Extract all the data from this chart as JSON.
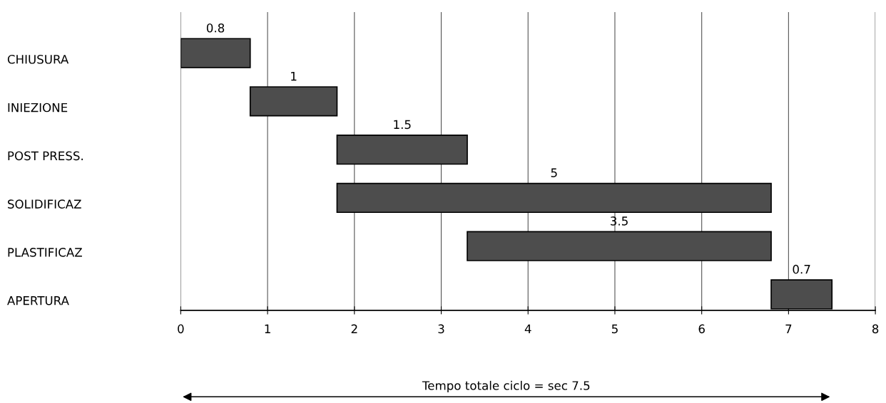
{
  "chart_data": {
    "type": "bar",
    "orientation": "horizontal",
    "categories": [
      "CHIUSURA",
      "INIEZIONE",
      "POST PRESS.",
      "SOLIDIFICAZ",
      "PLASTIFICAZ",
      "APERTURA"
    ],
    "base": [
      0,
      0.8,
      1.8,
      1.8,
      3.3,
      6.8
    ],
    "values": [
      0.8,
      1,
      1.5,
      5,
      3.5,
      0.7
    ],
    "color": "#4d4d4d",
    "data_labels": true,
    "xlim": [
      0,
      8
    ],
    "xticks": [
      0,
      1,
      2,
      3,
      4,
      5,
      6,
      7,
      8
    ],
    "grid": "x",
    "annotations": [
      "Tempo totale ciclo = sec 7.5"
    ]
  }
}
